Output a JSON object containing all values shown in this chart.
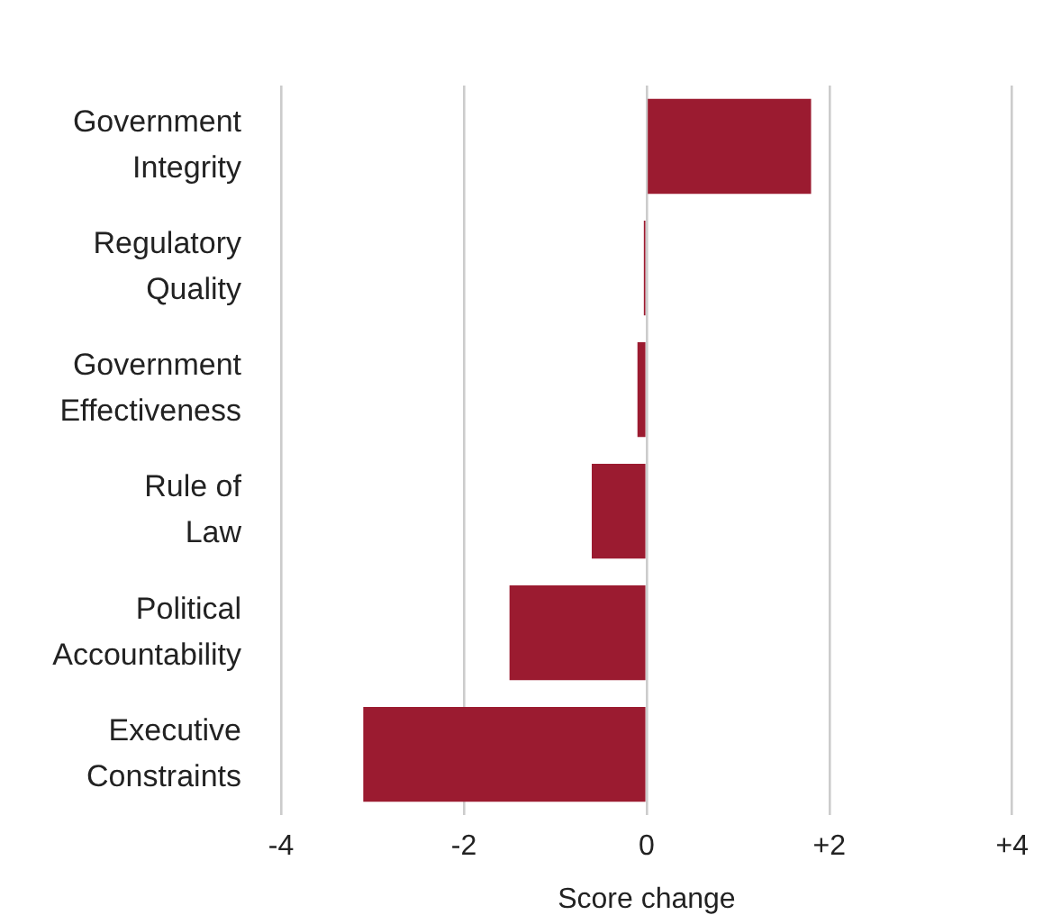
{
  "chart_data": {
    "type": "bar",
    "orientation": "horizontal",
    "xlabel": "Score change",
    "categories": [
      "Government\nIntegrity",
      "Regulatory\nQuality",
      "Government\nEffectiveness",
      "Rule of\nLaw",
      "Political\nAccountability",
      "Executive\nConstraints"
    ],
    "values": [
      1.8,
      -0.03,
      -0.1,
      -0.6,
      -1.5,
      -3.1
    ],
    "color": "#9b1b30",
    "xlim": [
      -4,
      4
    ],
    "xticks": [
      -4,
      -2,
      0,
      {
        "value": 2,
        "label": "+2"
      },
      {
        "value": 4,
        "label": "+4"
      }
    ],
    "grid": "x",
    "legend": false
  }
}
